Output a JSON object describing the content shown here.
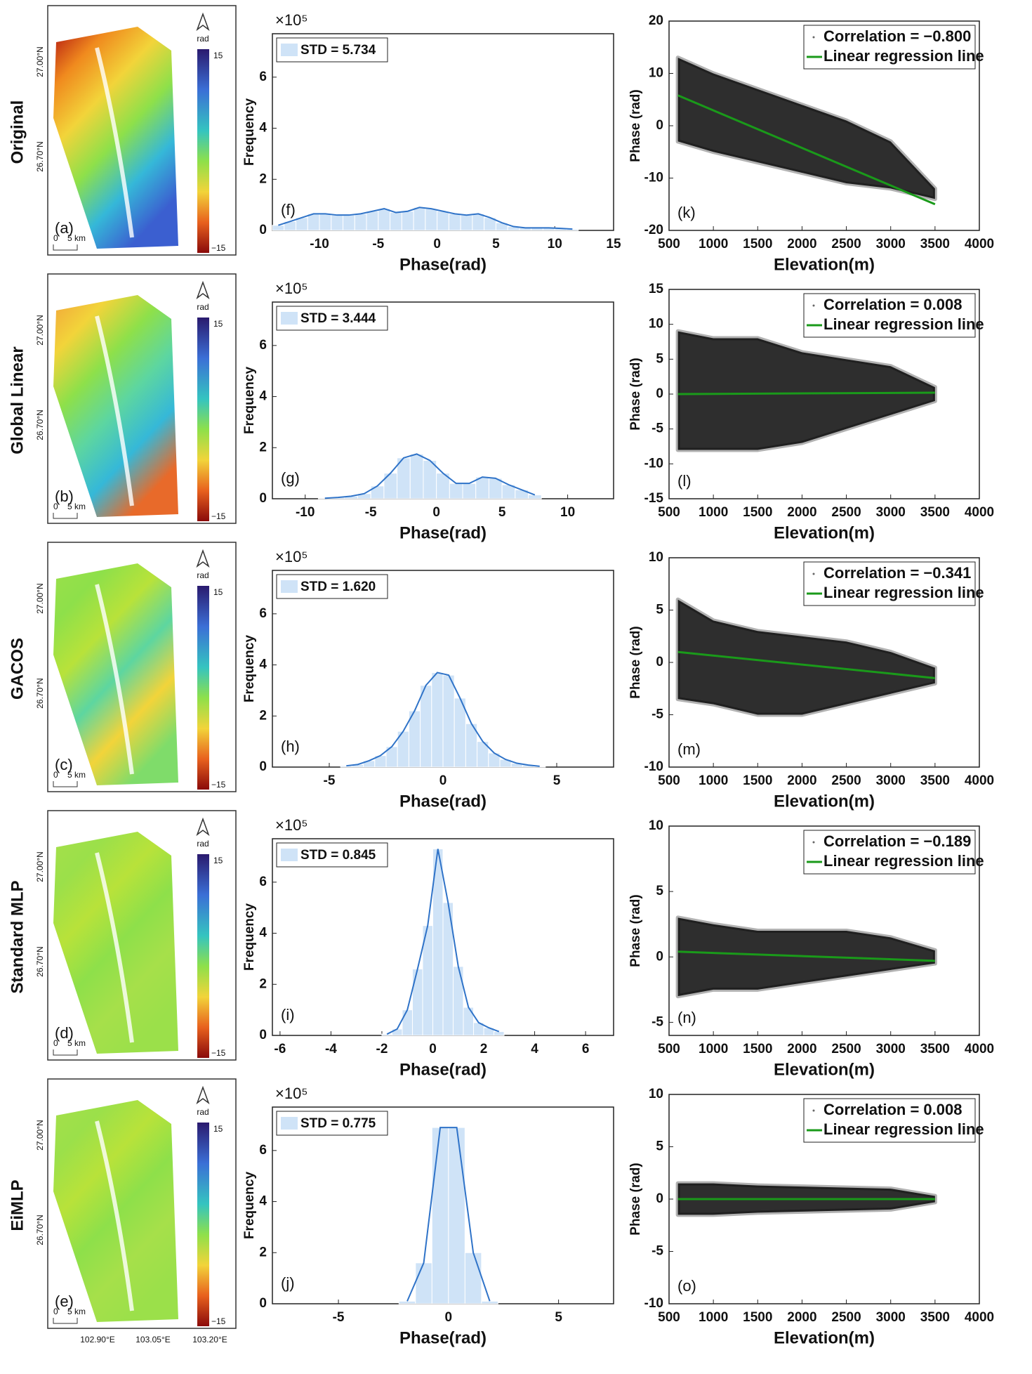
{
  "maps": {
    "colorbar_unit": "rad",
    "colorbar_max": "15",
    "colorbar_min": "−15",
    "lat_labels": [
      "27.00°N",
      "26.70°N"
    ],
    "scale_zero": "0",
    "scale_label": "5 km",
    "lon_labels": [
      "102.90°E",
      "103.05°E",
      "103.20°E"
    ],
    "panels": [
      {
        "row_label": "Original",
        "panel_label": "(a)"
      },
      {
        "row_label": "Global Linear",
        "panel_label": "(b)"
      },
      {
        "row_label": "GACOS",
        "panel_label": "(c)"
      },
      {
        "row_label": "Standard MLP",
        "panel_label": "(d)"
      },
      {
        "row_label": "EiMLP",
        "panel_label": "(e)"
      }
    ]
  },
  "chart_data": [
    {
      "type": "histogram",
      "panel_label": "(f)",
      "xlabel": "Phase(rad)",
      "ylabel": "Frequency",
      "y_multiplier": "×10⁵",
      "xlim": [
        -14,
        15
      ],
      "xticks": [
        -10,
        -5,
        0,
        5,
        10,
        15
      ],
      "ylim": [
        0,
        7.7
      ],
      "yticks": [
        0,
        2,
        4,
        6
      ],
      "line_color": "#2f73c8",
      "bins": [
        -14,
        -13,
        -12,
        -11,
        -10,
        -9,
        -8,
        -7,
        -6,
        -5,
        -4,
        -3,
        -2,
        -1,
        0,
        1,
        2,
        3,
        4,
        5,
        6,
        7,
        8,
        9,
        10,
        11,
        12
      ],
      "series": [
        {
          "name": "STD = 5.734",
          "color": "#cfe3f7",
          "values": [
            0.2,
            0.35,
            0.5,
            0.65,
            0.65,
            0.6,
            0.6,
            0.65,
            0.75,
            0.85,
            0.7,
            0.75,
            0.9,
            0.85,
            0.75,
            0.65,
            0.6,
            0.65,
            0.5,
            0.3,
            0.15,
            0.1,
            0.1,
            0.1,
            0.08,
            0.05
          ]
        }
      ]
    },
    {
      "type": "histogram",
      "panel_label": "(g)",
      "xlabel": "Phase(rad)",
      "ylabel": "Frequency",
      "y_multiplier": "×10⁵",
      "xlim": [
        -12.5,
        13.5
      ],
      "xticks": [
        -10,
        -5,
        0,
        5,
        10
      ],
      "ylim": [
        0,
        7.7
      ],
      "yticks": [
        0,
        2,
        4,
        6
      ],
      "line_color": "#2f73c8",
      "bins": [
        -9,
        -8,
        -7,
        -6,
        -5,
        -4,
        -3,
        -2,
        -1,
        0,
        1,
        2,
        3,
        4,
        5,
        6,
        7,
        8
      ],
      "series": [
        {
          "name": "STD = 3.444",
          "color": "#cfe3f7",
          "values": [
            0.02,
            0.05,
            0.1,
            0.2,
            0.5,
            1.0,
            1.6,
            1.75,
            1.5,
            1.0,
            0.6,
            0.6,
            0.85,
            0.8,
            0.55,
            0.35,
            0.15
          ]
        }
      ]
    },
    {
      "type": "histogram",
      "panel_label": "(h)",
      "xlabel": "Phase(rad)",
      "ylabel": "Frequency",
      "y_multiplier": "×10⁵",
      "xlim": [
        -7.5,
        7.5
      ],
      "xticks": [
        -5,
        0,
        5
      ],
      "ylim": [
        0,
        7.7
      ],
      "yticks": [
        0,
        2,
        4,
        6
      ],
      "line_color": "#2f73c8",
      "bins": [
        -4.5,
        -4,
        -3.5,
        -3,
        -2.5,
        -2,
        -1.5,
        -1,
        -0.5,
        0,
        0.5,
        1,
        1.5,
        2,
        2.5,
        3,
        3.5,
        4,
        4.5
      ],
      "series": [
        {
          "name": "STD = 1.620",
          "color": "#cfe3f7",
          "values": [
            0.05,
            0.1,
            0.25,
            0.45,
            0.8,
            1.4,
            2.2,
            3.2,
            3.7,
            3.6,
            2.7,
            1.7,
            1.0,
            0.55,
            0.3,
            0.15,
            0.08,
            0.03
          ]
        }
      ]
    },
    {
      "type": "histogram",
      "panel_label": "(i)",
      "xlabel": "Phase(rad)",
      "ylabel": "Frequency",
      "y_multiplier": "×10⁵",
      "xlim": [
        -6.3,
        7.1
      ],
      "xticks": [
        -6,
        -4,
        -2,
        0,
        2,
        4,
        6
      ],
      "ylim": [
        0,
        7.7
      ],
      "yticks": [
        0,
        2,
        4,
        6
      ],
      "line_color": "#2f73c8",
      "bins": [
        -2,
        -1.6,
        -1.2,
        -0.8,
        -0.4,
        0,
        0.4,
        0.8,
        1.2,
        1.6,
        2,
        2.4,
        2.8
      ],
      "series": [
        {
          "name": "STD = 0.845",
          "color": "#cfe3f7",
          "values": [
            0.05,
            0.25,
            1.0,
            2.6,
            4.3,
            7.3,
            5.2,
            2.7,
            1.1,
            0.5,
            0.3,
            0.15
          ]
        }
      ]
    },
    {
      "type": "histogram",
      "panel_label": "(j)",
      "xlabel": "Phase(rad)",
      "ylabel": "Frequency",
      "y_multiplier": "×10⁵",
      "xlim": [
        -8,
        7.5
      ],
      "xticks": [
        -5,
        0,
        5
      ],
      "ylim": [
        0,
        7.7
      ],
      "yticks": [
        0,
        2,
        4,
        6
      ],
      "line_color": "#2f73c8",
      "bins": [
        -2.25,
        -1.5,
        -0.75,
        0,
        0.75,
        1.5,
        2.25
      ],
      "series": [
        {
          "name": "STD = 0.775",
          "color": "#cfe3f7",
          "values": [
            0.1,
            1.6,
            6.9,
            6.9,
            2.0,
            0.1
          ]
        }
      ]
    },
    {
      "type": "scatter",
      "panel_label": "(k)",
      "xlabel": "Elevation(m)",
      "ylabel": "Phase (rad)",
      "xlim": [
        500,
        4000
      ],
      "xticks": [
        500,
        1000,
        1500,
        2000,
        2500,
        3000,
        3500,
        4000
      ],
      "ylim": [
        -20,
        20
      ],
      "yticks": [
        -20,
        -10,
        0,
        10,
        20
      ],
      "cloud": {
        "name": "Correlation = −0.800",
        "color": "#000000",
        "x": [
          600,
          1000,
          1500,
          2000,
          2500,
          3000,
          3500
        ],
        "upper": [
          13,
          10,
          7,
          4,
          1,
          -3,
          -12
        ],
        "lower": [
          -3,
          -5,
          -7,
          -9,
          -11,
          -12,
          -14
        ]
      },
      "series": [
        {
          "name": "Linear regression line",
          "color": "#1a9a1a",
          "x": [
            600,
            3500
          ],
          "values": [
            5.8,
            -15
          ]
        }
      ]
    },
    {
      "type": "scatter",
      "panel_label": "(l)",
      "xlabel": "Elevation(m)",
      "ylabel": "Phase (rad)",
      "xlim": [
        500,
        4000
      ],
      "xticks": [
        500,
        1000,
        1500,
        2000,
        2500,
        3000,
        3500,
        4000
      ],
      "ylim": [
        -15,
        15
      ],
      "yticks": [
        -15,
        -10,
        -5,
        0,
        5,
        10,
        15
      ],
      "cloud": {
        "name": "Correlation = 0.008",
        "color": "#000000",
        "x": [
          600,
          1000,
          1500,
          2000,
          2500,
          3000,
          3500
        ],
        "upper": [
          9,
          8,
          8,
          6,
          5,
          4,
          1
        ],
        "lower": [
          -8,
          -8,
          -8,
          -7,
          -5,
          -3,
          -1
        ]
      },
      "series": [
        {
          "name": "Linear regression line",
          "color": "#1a9a1a",
          "x": [
            600,
            3500
          ],
          "values": [
            0,
            0.2
          ]
        }
      ]
    },
    {
      "type": "scatter",
      "panel_label": "(m)",
      "xlabel": "Elevation(m)",
      "ylabel": "Phase (rad)",
      "xlim": [
        500,
        4000
      ],
      "xticks": [
        500,
        1000,
        1500,
        2000,
        2500,
        3000,
        3500,
        4000
      ],
      "ylim": [
        -10,
        10
      ],
      "yticks": [
        -10,
        -5,
        0,
        5,
        10
      ],
      "cloud": {
        "name": "Correlation = −0.341",
        "color": "#000000",
        "x": [
          600,
          1000,
          1500,
          2000,
          2500,
          3000,
          3500
        ],
        "upper": [
          6,
          4,
          3,
          2.5,
          2,
          1,
          -0.5
        ],
        "lower": [
          -3.5,
          -4,
          -5,
          -5,
          -4,
          -3,
          -2
        ]
      },
      "series": [
        {
          "name": "Linear regression line",
          "color": "#1a9a1a",
          "x": [
            600,
            3500
          ],
          "values": [
            1,
            -1.5
          ]
        }
      ]
    },
    {
      "type": "scatter",
      "panel_label": "(n)",
      "xlabel": "Elevation(m)",
      "ylabel": "Phase (rad)",
      "xlim": [
        500,
        4000
      ],
      "xticks": [
        500,
        1000,
        1500,
        2000,
        2500,
        3000,
        3500,
        4000
      ],
      "ylim": [
        -6,
        10
      ],
      "yticks": [
        -5,
        0,
        5,
        10
      ],
      "cloud": {
        "name": "Correlation = −0.189",
        "color": "#000000",
        "x": [
          600,
          1000,
          1500,
          2000,
          2500,
          3000,
          3500
        ],
        "upper": [
          3,
          2.5,
          2,
          2,
          2,
          1.5,
          0.5
        ],
        "lower": [
          -3,
          -2.5,
          -2.5,
          -2,
          -1.5,
          -1,
          -0.5
        ]
      },
      "series": [
        {
          "name": "Linear regression line",
          "color": "#1a9a1a",
          "x": [
            600,
            3500
          ],
          "values": [
            0.4,
            -0.3
          ]
        }
      ]
    },
    {
      "type": "scatter",
      "panel_label": "(o)",
      "xlabel": "Elevation(m)",
      "ylabel": "Phase (rad)",
      "xlim": [
        500,
        4000
      ],
      "xticks": [
        500,
        1000,
        1500,
        2000,
        2500,
        3000,
        3500,
        4000
      ],
      "ylim": [
        -10,
        10
      ],
      "yticks": [
        -10,
        -5,
        0,
        5,
        10
      ],
      "cloud": {
        "name": "Correlation = 0.008",
        "color": "#000000",
        "x": [
          600,
          1000,
          1500,
          2000,
          2500,
          3000,
          3500
        ],
        "upper": [
          1.5,
          1.5,
          1.3,
          1.2,
          1.1,
          1,
          0.3
        ],
        "lower": [
          -1.5,
          -1.5,
          -1.3,
          -1.2,
          -1.1,
          -1,
          -0.3
        ]
      },
      "series": [
        {
          "name": "Linear regression line",
          "color": "#1a9a1a",
          "x": [
            600,
            3500
          ],
          "values": [
            0,
            0
          ]
        }
      ]
    }
  ]
}
